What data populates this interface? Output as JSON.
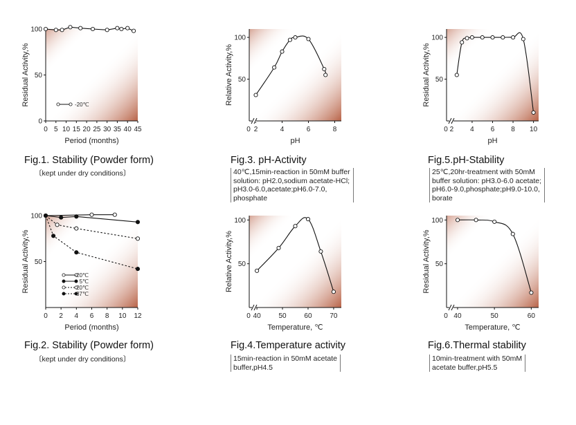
{
  "colors": {
    "grad_light": "#ffffff",
    "grad_dark": "#b45a3d",
    "line": "#111111",
    "axis": "#111111"
  },
  "figures": [
    {
      "title": "Fig.1. Stability (Powder form)",
      "caption": "〔kept under dry conditions〕",
      "chart_data": {
        "type": "line",
        "xlabel": "Period (months)",
        "ylabel": "Residual Activity,%",
        "xlim": [
          0,
          45
        ],
        "ylim": [
          0,
          100
        ],
        "xticks": [
          0,
          5,
          10,
          15,
          20,
          25,
          30,
          35,
          40,
          45
        ],
        "xtick_labels": [
          "0",
          "5",
          "10",
          "15",
          "20",
          "25",
          "30",
          "35",
          "40",
          "45"
        ],
        "yticks": [
          0,
          50,
          100
        ],
        "ytick_labels": [
          "0",
          "50",
          "100"
        ],
        "legend": [
          {
            "label": "-20℃",
            "style": "open"
          }
        ],
        "series": [
          {
            "name": "-20℃",
            "marker": "open",
            "dash": false,
            "x": [
              0,
              5,
              8,
              12,
              17,
              23,
              30,
              35,
              37,
              40,
              43
            ],
            "y": [
              100,
              99,
              99,
              102,
              101,
              100,
              99,
              101,
              100,
              101,
              98
            ]
          }
        ]
      }
    },
    {
      "title": "Fig.2. Stability (Powder form)",
      "caption": "〔kept under dry conditions〕",
      "chart_data": {
        "type": "line",
        "xlabel": "Period (months)",
        "ylabel": "Residual Activity,%",
        "xlim": [
          0,
          12
        ],
        "ylim": [
          0,
          100
        ],
        "xticks": [
          0,
          2,
          4,
          6,
          8,
          10,
          12
        ],
        "xtick_labels": [
          "0",
          "2",
          "4",
          "6",
          "8",
          "10",
          "12"
        ],
        "yticks": [
          50,
          100
        ],
        "ytick_labels": [
          "50",
          "100"
        ],
        "legend": [
          {
            "label": "-20℃",
            "style": "open"
          },
          {
            "label": "5℃",
            "style": "filled"
          },
          {
            "label": "20℃",
            "style": "open-dashed"
          },
          {
            "label": "37℃",
            "style": "filled-dashed"
          }
        ],
        "series": [
          {
            "name": "-20℃",
            "marker": "open",
            "dash": false,
            "x": [
              0,
              6,
              9
            ],
            "y": [
              100,
              101,
              101
            ]
          },
          {
            "name": "5℃",
            "marker": "filled",
            "dash": false,
            "x": [
              0,
              2,
              4,
              12
            ],
            "y": [
              100,
              98,
              99,
              93
            ]
          },
          {
            "name": "20℃",
            "marker": "open",
            "dash": true,
            "x": [
              0,
              1.5,
              4,
              12
            ],
            "y": [
              100,
              90,
              86,
              75
            ]
          },
          {
            "name": "37℃",
            "marker": "filled",
            "dash": true,
            "x": [
              0,
              1,
              4,
              12
            ],
            "y": [
              100,
              78,
              60,
              42
            ]
          }
        ]
      }
    },
    {
      "title": "Fig.3. pH-Activity",
      "caption": "40℃,15min-reaction in 50mM buffer\nsolution: pH2.0,sodium acetate-HCl;\npH3.0-6.0,acetate;pH6.0-7.0,\nphosphate",
      "chart_data": {
        "type": "line",
        "xlabel": "pH",
        "ylabel": "Relative Activity,%",
        "xlim": [
          1.5,
          8.5
        ],
        "ylim": [
          0,
          110
        ],
        "axis_break": true,
        "xticks": [
          2,
          4,
          6,
          8
        ],
        "xtick_labels": [
          "2",
          "4",
          "6",
          "8"
        ],
        "origin_label": "0",
        "yticks": [
          50,
          100
        ],
        "ytick_labels": [
          "50",
          "100"
        ],
        "series": [
          {
            "name": "",
            "marker": "open",
            "dash": false,
            "curve": true,
            "x": [
              2.0,
              3.4,
              4.0,
              4.6,
              5.0,
              6.0,
              7.2,
              7.3
            ],
            "y": [
              31,
              64,
              83,
              97,
              100,
              98,
              62,
              55
            ]
          }
        ]
      }
    },
    {
      "title": "Fig.4.Temperature activity",
      "caption": "15min-reaction in 50mM acetate\nbuffer,pH4.5",
      "chart_data": {
        "type": "line",
        "xlabel": "Temperature, ℃",
        "ylabel": "Relative Activity,%",
        "xlim": [
          37,
          73
        ],
        "ylim": [
          0,
          105
        ],
        "axis_break": true,
        "xticks": [
          40,
          50,
          60,
          70
        ],
        "xtick_labels": [
          "40",
          "50",
          "60",
          "70"
        ],
        "origin_label": "0",
        "yticks": [
          50,
          100
        ],
        "ytick_labels": [
          "50",
          "100"
        ],
        "series": [
          {
            "name": "",
            "marker": "open",
            "dash": false,
            "curve": true,
            "x": [
              40,
              48.5,
              55,
              60,
              65,
              70
            ],
            "y": [
              42,
              68,
              93,
              101,
              64,
              18
            ]
          }
        ]
      }
    },
    {
      "title": "Fig.5.pH-Stability",
      "caption": "25℃,20hr-treatment with 50mM\nbuffer solution: pH3.0-6.0 acetate;\npH6.0-9.0,phosphate;pH9.0-10.0,\nborate",
      "chart_data": {
        "type": "line",
        "xlabel": "pH",
        "ylabel": "Residual Activity,%",
        "xlim": [
          1.5,
          10.5
        ],
        "ylim": [
          0,
          110
        ],
        "axis_break": true,
        "xticks": [
          2,
          4,
          6,
          8,
          10
        ],
        "xtick_labels": [
          "2",
          "4",
          "6",
          "8",
          "10"
        ],
        "origin_label": "0",
        "yticks": [
          50,
          100
        ],
        "ytick_labels": [
          "50",
          "100"
        ],
        "series": [
          {
            "name": "",
            "marker": "open",
            "dash": false,
            "curve": true,
            "x": [
              2.5,
              3.0,
              3.5,
              4.0,
              5.0,
              6.0,
              7.0,
              8.0,
              9.0,
              10.0
            ],
            "y": [
              55,
              94,
              99,
              100,
              100,
              100,
              100,
              100,
              98,
              10
            ]
          }
        ]
      }
    },
    {
      "title": "Fig.6.Thermal stability",
      "caption": "10min-treatment with 50mM\nacetate buffer,pH5.5",
      "chart_data": {
        "type": "line",
        "xlabel": "Temperature, ℃",
        "ylabel": "Residual Activity,%",
        "xlim": [
          37,
          62
        ],
        "ylim": [
          0,
          105
        ],
        "axis_break": true,
        "xticks": [
          40,
          50,
          60
        ],
        "xtick_labels": [
          "40",
          "50",
          "60"
        ],
        "origin_label": "0",
        "yticks": [
          50,
          100
        ],
        "ytick_labels": [
          "50",
          "100"
        ],
        "series": [
          {
            "name": "",
            "marker": "open",
            "dash": false,
            "curve": true,
            "x": [
              40,
              45,
              50,
              55,
              60
            ],
            "y": [
              100,
              100,
              98,
              84,
              17
            ]
          }
        ]
      }
    }
  ]
}
